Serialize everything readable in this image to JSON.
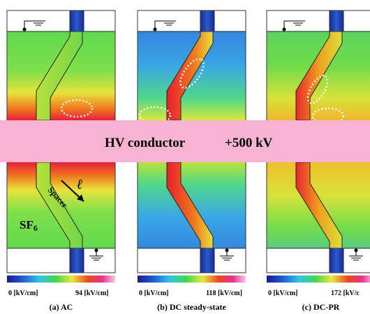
{
  "figure": {
    "conductor": {
      "label": "HV conductor",
      "voltage": "+500 kV"
    },
    "medium": {
      "base": "SF",
      "sub": "6"
    },
    "spacer_label": "Spacer",
    "length_symbol": "ℓ",
    "panels": [
      {
        "caption": "(a) AC",
        "scale_min": "0 [kV/cm]",
        "scale_max": "94 [kV/cm]"
      },
      {
        "caption": "(b) DC steady-state",
        "scale_min": "0 [kV/cm]",
        "scale_max": "118 [kV/cm]"
      },
      {
        "caption": "(c) DC-PR",
        "scale_min": "0 [kV/cm]",
        "scale_max": "172 [kV/c"
      }
    ]
  }
}
